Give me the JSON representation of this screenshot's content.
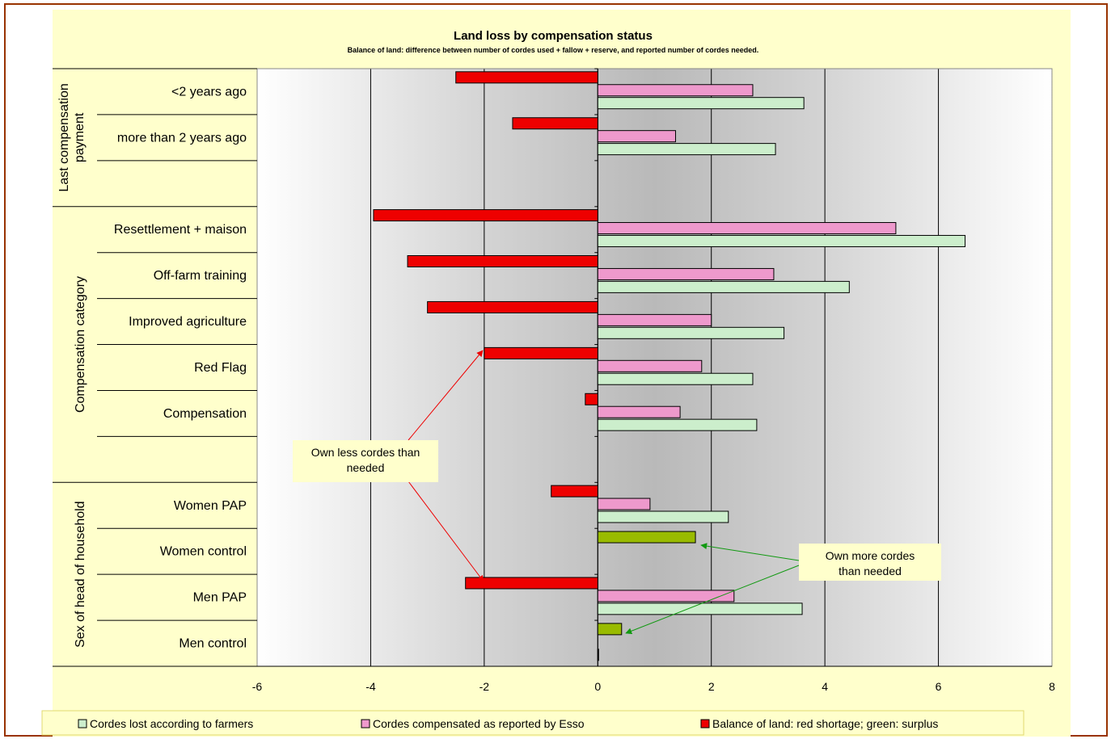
{
  "chart_data": {
    "type": "bar",
    "orientation": "horizontal",
    "title": "Land loss by compensation status",
    "subtitle": "Balance of land: difference between number of cordes used + fallow + reserve, and reported number of cordes needed.",
    "xlim": [
      -6,
      8
    ],
    "x_ticks": [
      "-6",
      "-4",
      "-2",
      "0",
      "2",
      "4",
      "6",
      "8"
    ],
    "grid": true,
    "legend_position": "bottom",
    "groups": [
      {
        "label": "Last compensation payment",
        "categories": [
          "<2 years ago",
          "more than 2 years ago",
          ""
        ]
      },
      {
        "label": "Compensation category",
        "categories": [
          "Resettlement + maison",
          "Off-farm training",
          "Improved agriculture",
          "Red Flag",
          "Compensation",
          ""
        ]
      },
      {
        "label": "Sex of head of household",
        "categories": [
          "Women PAP",
          "Women control",
          "Men PAP",
          "Men control"
        ]
      }
    ],
    "categories": [
      "<2 years ago",
      "more than 2 years ago",
      "",
      "Resettlement + maison",
      "Off-farm training",
      "Improved agriculture",
      "Red Flag",
      "Compensation",
      "",
      "Women PAP",
      "Women control",
      "Men PAP",
      "Men control"
    ],
    "series": [
      {
        "name": "Balance of land: red shortage; green: surplus",
        "values": [
          -2.5,
          -1.5,
          null,
          -3.95,
          -3.35,
          -3.0,
          -2.0,
          -0.22,
          null,
          -0.82,
          1.72,
          -2.33,
          0.42
        ],
        "colors": [
          "#ee0000",
          "#ee0000",
          null,
          "#ee0000",
          "#ee0000",
          "#ee0000",
          "#ee0000",
          "#ee0000",
          null,
          "#ee0000",
          "#99bb00",
          "#ee0000",
          "#99bb00"
        ]
      },
      {
        "name": "Cordes compensated as reported by Esso",
        "values": [
          2.73,
          1.37,
          null,
          5.25,
          3.1,
          2.0,
          1.83,
          1.45,
          null,
          0.92,
          null,
          2.4,
          null
        ],
        "color": "#ee99cc"
      },
      {
        "name": "Cordes lost according to farmers",
        "values": [
          3.63,
          3.13,
          null,
          6.47,
          4.43,
          3.28,
          2.73,
          2.8,
          null,
          2.3,
          null,
          3.6,
          0.0
        ],
        "color": "#cceecc"
      }
    ],
    "legend": [
      "Cordes lost according to farmers",
      "Cordes compensated as reported by Esso",
      "Balance of land: red shortage; green: surplus"
    ],
    "annotations": [
      {
        "text_lines": [
          "Own less cordes than",
          "needed"
        ],
        "color": "#ee0000"
      },
      {
        "text_lines": [
          "Own more cordes",
          "than needed"
        ],
        "color": "#119911"
      }
    ]
  }
}
